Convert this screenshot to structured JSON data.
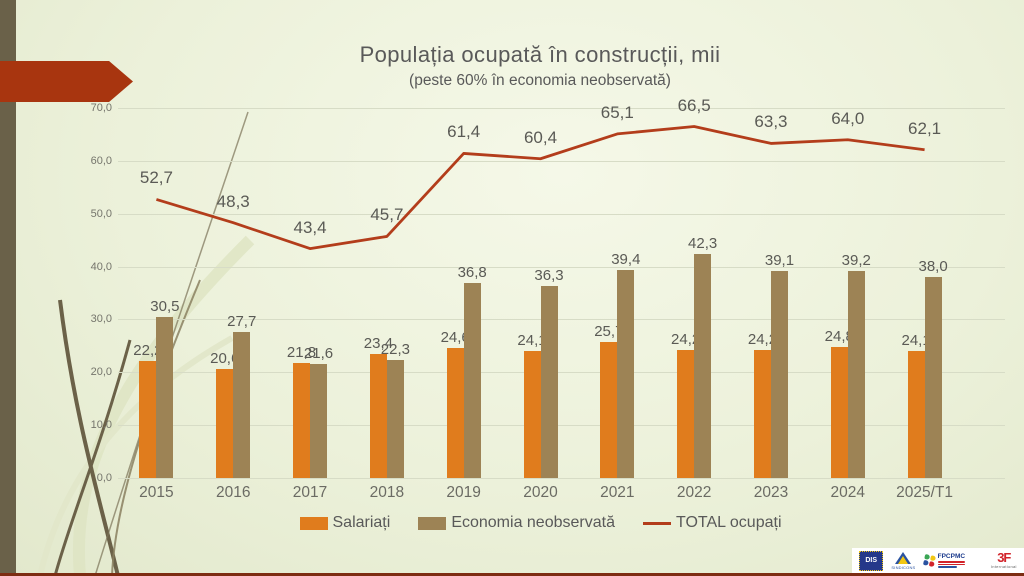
{
  "slide": {
    "title": "Populația ocupată în construcții, mii",
    "subtitle": "(peste 60% în economia neobservată)"
  },
  "chart_data": {
    "type": "bar",
    "title": "Populația ocupată în construcții, mii",
    "subtitle": "(peste 60% în economia neobservată)",
    "categories": [
      "2015",
      "2016",
      "2017",
      "2018",
      "2019",
      "2020",
      "2021",
      "2022",
      "2023",
      "2024",
      "2025/T1"
    ],
    "series": [
      {
        "name": "Salariați",
        "type": "bar",
        "color": "#e07c1d",
        "values": [
          22.2,
          20.6,
          21.8,
          23.4,
          24.6,
          24.1,
          25.7,
          24.2,
          24.2,
          24.8,
          24.1
        ]
      },
      {
        "name": "Economia neobservată",
        "type": "bar",
        "color": "#9d8355",
        "values": [
          30.5,
          27.7,
          21.6,
          22.3,
          36.8,
          36.3,
          39.4,
          42.3,
          39.1,
          39.2,
          38.0
        ]
      },
      {
        "name": "TOTAL ocupați",
        "type": "line",
        "color": "#b33d1b",
        "values": [
          52.7,
          48.3,
          43.4,
          45.7,
          61.4,
          60.4,
          65.1,
          66.5,
          63.3,
          64.0,
          62.1
        ]
      }
    ],
    "ylim": [
      0,
      70
    ],
    "ytick_step": 10,
    "decimal_separator": ",",
    "grid": true,
    "grid_color": "#d7dcc6",
    "text_color": "#595959",
    "legend_position": "bottom",
    "value_labels": true
  },
  "footer": {
    "logos": [
      {
        "label": "DIS"
      },
      {
        "label": "SINDICONS"
      },
      {
        "label": "FPCPMC"
      },
      {
        "label": "3F",
        "sublabel": "International"
      }
    ]
  },
  "theme": {
    "arrow": "#a8350f",
    "band": "#6a6149",
    "bottom_line": "#7d2c12",
    "text": "#595959"
  }
}
